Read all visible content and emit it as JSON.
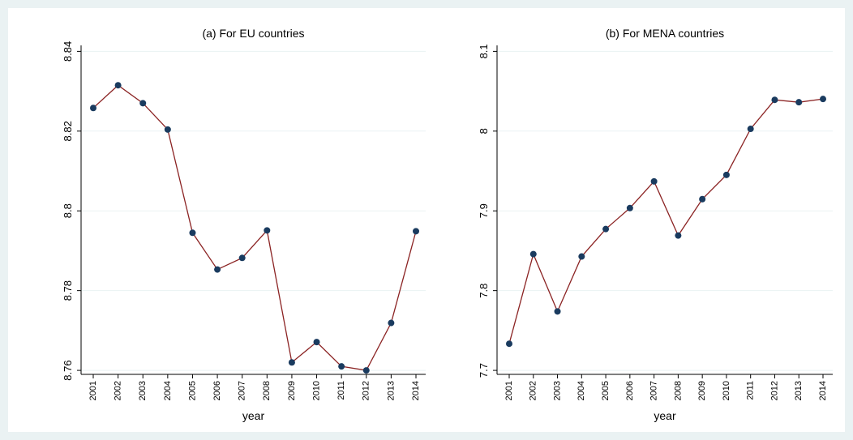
{
  "chart_data": [
    {
      "type": "line",
      "title": "(a) For EU countries",
      "x_label": "year",
      "categories": [
        "2001",
        "2002",
        "2003",
        "2004",
        "2005",
        "2006",
        "2007",
        "2008",
        "2009",
        "2010",
        "2011",
        "2012",
        "2013",
        "2014"
      ],
      "series": [
        {
          "color": "#8b2323",
          "marker_color": "#1a3b5f",
          "values": [
            8.8258,
            8.8315,
            8.827,
            8.8204,
            8.7945,
            8.7853,
            8.7882,
            8.7951,
            8.762,
            8.7671,
            8.761,
            8.76,
            8.7719,
            8.7949
          ]
        }
      ],
      "ylim": [
        8.759,
        8.8415
      ],
      "yticks": [
        8.76,
        8.78,
        8.8,
        8.82,
        8.84
      ],
      "grid": true
    },
    {
      "type": "line",
      "title": "(b) For MENA countries",
      "x_label": "year",
      "categories": [
        "2001",
        "2002",
        "2003",
        "2004",
        "2005",
        "2006",
        "2007",
        "2008",
        "2009",
        "2010",
        "2011",
        "2012",
        "2013",
        "2014"
      ],
      "series": [
        {
          "color": "#8b2323",
          "marker_color": "#1a3b5f",
          "values": [
            7.7334,
            7.8458,
            7.7739,
            7.8428,
            7.8772,
            7.9035,
            7.937,
            7.8691,
            7.9147,
            7.9451,
            8.0028,
            8.0392,
            8.0362,
            8.0403
          ]
        }
      ],
      "ylim": [
        7.695,
        8.1075
      ],
      "yticks": [
        7.7,
        7.8,
        7.9,
        8,
        8.1
      ],
      "grid": true
    }
  ]
}
